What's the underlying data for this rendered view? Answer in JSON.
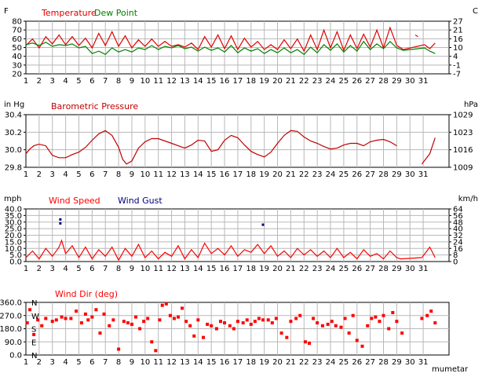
{
  "colors": {
    "temperature": "#e00000",
    "dew_point": "#008000",
    "pressure": "#c00000",
    "wind_speed": "#ff0000",
    "wind_gust": "#000080",
    "wind_dir": "#ff0000",
    "grid": "#b8b8b8"
  },
  "watermark": "mumetar",
  "chart_data": [
    {
      "type": "line",
      "title": "Temperature",
      "title2": "Dew Point",
      "left_unit": "F",
      "right_unit": "C",
      "ylim": [
        20,
        85
      ],
      "left_ticks": [
        "80",
        "70",
        "60",
        "50",
        "40",
        "30",
        "20"
      ],
      "right_ticks": [
        "27",
        "21",
        "16",
        "10",
        "4",
        "-1",
        "-7"
      ],
      "x_ticks": [
        "1",
        "2",
        "3",
        "4",
        "5",
        "6",
        "7",
        "8",
        "9",
        "10",
        "11",
        "12",
        "13",
        "14",
        "15",
        "16",
        "17",
        "18",
        "19",
        "20",
        "21",
        "22",
        "23",
        "24",
        "25",
        "26",
        "27",
        "28",
        "29",
        "30",
        "31"
      ],
      "series": [
        {
          "name": "Temperature",
          "x": [
            1,
            1.5,
            2,
            2.5,
            3,
            3.5,
            4,
            4.5,
            5,
            5.5,
            6,
            6.5,
            7,
            7.5,
            8,
            8.5,
            9,
            9.5,
            10,
            10.5,
            11,
            11.5,
            12,
            12.5,
            13,
            13.5,
            14,
            14.5,
            15,
            15.5,
            16,
            16.5,
            17,
            17.5,
            18,
            18.5,
            19,
            19.5,
            20,
            20.5,
            21,
            21.5,
            22,
            22.5,
            23,
            23.5,
            24,
            24.5,
            25,
            25.5,
            26,
            26.5,
            27,
            27.5,
            28,
            28.5,
            29,
            29.5,
            31.1,
            31.5,
            31.9
          ],
          "values": [
            55,
            63,
            52,
            66,
            57,
            68,
            56,
            66,
            55,
            64,
            52,
            70,
            55,
            72,
            54,
            67,
            52,
            62,
            54,
            63,
            54,
            60,
            54,
            56,
            53,
            58,
            50,
            66,
            53,
            68,
            51,
            67,
            50,
            64,
            53,
            60,
            50,
            56,
            50,
            62,
            51,
            63,
            48,
            68,
            50,
            74,
            52,
            72,
            49,
            68,
            51,
            69,
            53,
            74,
            52,
            77,
            55,
            50,
            56,
            51,
            58
          ]
        },
        {
          "name": "Dew Point",
          "x": [
            1,
            1.5,
            2,
            2.5,
            3,
            3.5,
            4,
            4.5,
            5,
            5.5,
            6,
            6.5,
            7,
            7.5,
            8,
            8.5,
            9,
            9.5,
            10,
            10.5,
            11,
            11.5,
            12,
            12.5,
            13,
            13.5,
            14,
            14.5,
            15,
            15.5,
            16,
            16.5,
            17,
            17.5,
            18,
            18.5,
            19,
            19.5,
            20,
            20.5,
            21,
            21.5,
            22,
            22.5,
            23,
            23.5,
            24,
            24.5,
            25,
            25.5,
            26,
            26.5,
            27,
            27.5,
            28,
            28.5,
            29,
            29.5,
            31.1,
            31.5,
            31.9
          ],
          "values": [
            56,
            58,
            55,
            59,
            54,
            56,
            55,
            57,
            52,
            54,
            45,
            48,
            44,
            52,
            47,
            50,
            47,
            52,
            50,
            55,
            50,
            54,
            52,
            55,
            51,
            53,
            48,
            53,
            49,
            52,
            47,
            55,
            46,
            52,
            48,
            51,
            45,
            50,
            46,
            52,
            46,
            50,
            44,
            53,
            46,
            56,
            49,
            57,
            47,
            55,
            48,
            60,
            50,
            57,
            51,
            60,
            52,
            49,
            52,
            48,
            45
          ]
        },
        {
          "name": "Temperature-gap",
          "x": [
            30.4,
            30.6
          ],
          "values": [
            68,
            66
          ]
        }
      ]
    },
    {
      "type": "line",
      "title": "Barometric Pressure",
      "left_unit": "in Hg",
      "right_unit": "hPa",
      "ylim": [
        29.8,
        30.46
      ],
      "left_ticks": [
        "30.4",
        "30.2",
        "30.0",
        "29.8"
      ],
      "right_ticks": [
        "1029",
        "1023",
        "1016",
        "1009"
      ],
      "series": [
        {
          "name": "Barometric Pressure",
          "x": [
            1,
            1.3,
            1.6,
            2,
            2.5,
            3,
            3.5,
            4,
            4.5,
            5,
            5.5,
            6,
            6.5,
            7,
            7.5,
            8,
            8.3,
            8.6,
            9,
            9.5,
            10,
            10.5,
            11,
            11.5,
            12,
            12.5,
            13,
            13.5,
            14,
            14.5,
            15,
            15.5,
            16,
            16.5,
            17,
            17.5,
            18,
            18.5,
            19,
            19.5,
            20,
            20.5,
            21,
            21.5,
            22,
            22.5,
            23,
            23.5,
            24,
            24.5,
            25,
            25.5,
            26,
            26.5,
            27,
            27.5,
            28,
            28.5,
            29
          ],
          "values": [
            29.97,
            30.03,
            30.07,
            30.09,
            30.07,
            29.95,
            29.92,
            29.92,
            29.96,
            29.99,
            30.05,
            30.14,
            30.22,
            30.26,
            30.2,
            30.05,
            29.9,
            29.84,
            29.88,
            30.04,
            30.12,
            30.16,
            30.16,
            30.13,
            30.1,
            30.07,
            30.04,
            30.08,
            30.14,
            30.13,
            30.0,
            30.02,
            30.14,
            30.2,
            30.17,
            30.08,
            30.0,
            29.96,
            29.93,
            29.99,
            30.1,
            30.2,
            30.26,
            30.25,
            30.18,
            30.13,
            30.1,
            30.06,
            30.03,
            30.04,
            30.08,
            30.1,
            30.1,
            30.07,
            30.12,
            30.14,
            30.15,
            30.12,
            30.07
          ]
        },
        {
          "name": "Barometric Pressure tail",
          "x": [
            30.9,
            31.5,
            31.9
          ],
          "values": [
            29.84,
            29.97,
            30.17
          ]
        }
      ]
    },
    {
      "type": "line",
      "title": "Wind Speed",
      "title2": "Wind Gust",
      "left_unit": "mph",
      "right_unit": "km/h",
      "ylim": [
        0,
        40
      ],
      "left_ticks": [
        "40.0",
        "35.0",
        "30.0",
        "25.0",
        "20.0",
        "15.0",
        "10.0",
        "5.0",
        "0.0"
      ],
      "right_ticks": [
        "64",
        "56",
        "48",
        "40",
        "32",
        "24",
        "16",
        "8",
        "0"
      ],
      "series": [
        {
          "name": "Wind Speed",
          "x": [
            1,
            1.5,
            2,
            2.5,
            3,
            3.5,
            3.7,
            4,
            4.5,
            5,
            5.5,
            6,
            6.5,
            7,
            7.5,
            8,
            8.5,
            9,
            9.5,
            10,
            10.5,
            11,
            11.5,
            12,
            12.5,
            13,
            13.5,
            14,
            14.5,
            15,
            15.5,
            16,
            16.5,
            17,
            17.5,
            18,
            18.5,
            19,
            19.5,
            20,
            20.5,
            21,
            21.5,
            22,
            22.5,
            23,
            23.5,
            24,
            24.5,
            25,
            25.5,
            26,
            26.5,
            27,
            27.5,
            28,
            28.5,
            29,
            29.3,
            30.9,
            31.5,
            31.9
          ],
          "values": [
            3,
            8,
            2,
            10,
            4,
            11,
            16,
            6,
            12,
            3,
            11,
            2,
            9,
            4,
            11,
            1,
            10,
            4,
            13,
            3,
            8,
            2,
            7,
            4,
            12,
            2,
            9,
            3,
            14,
            6,
            10,
            5,
            12,
            4,
            9,
            7,
            13,
            6,
            12,
            4,
            8,
            3,
            10,
            5,
            9,
            4,
            8,
            3,
            10,
            3,
            7,
            2,
            9,
            4,
            6,
            2,
            8,
            3,
            2,
            3,
            11,
            3
          ]
        }
      ],
      "gust_points": [
        {
          "x": 3.6,
          "y": 32
        },
        {
          "x": 3.6,
          "y": 29
        },
        {
          "x": 18.9,
          "y": 28
        }
      ]
    },
    {
      "type": "scatter",
      "title": "Wind Dir (deg)",
      "ylim": [
        0,
        360
      ],
      "left_ticks": [
        "360.0",
        "270.0",
        "180.0",
        "90.0",
        "0.0"
      ],
      "compass": [
        "N",
        "W",
        "S",
        "E",
        "N"
      ],
      "series": [
        {
          "name": "Wind Dir",
          "x": [
            1.1,
            1.3,
            1.6,
            1.9,
            2.2,
            2.5,
            3.0,
            3.3,
            3.7,
            4.0,
            4.4,
            4.8,
            5.2,
            5.5,
            5.7,
            6.0,
            6.3,
            6.6,
            6.9,
            7.3,
            7.6,
            8.0,
            8.4,
            8.7,
            9.0,
            9.3,
            9.6,
            9.9,
            10.2,
            10.5,
            10.8,
            11.1,
            11.3,
            11.6,
            11.9,
            12.2,
            12.5,
            12.8,
            13.1,
            13.4,
            13.7,
            14.0,
            14.4,
            14.7,
            15.0,
            15.4,
            15.7,
            16.0,
            16.4,
            16.7,
            17.0,
            17.4,
            17.7,
            18.0,
            18.3,
            18.6,
            18.9,
            19.3,
            19.6,
            19.9,
            20.3,
            20.7,
            21.0,
            21.4,
            21.7,
            22.1,
            22.4,
            22.7,
            23.0,
            23.4,
            23.8,
            24.1,
            24.4,
            24.8,
            25.1,
            25.4,
            25.7,
            26.0,
            26.4,
            26.8,
            27.1,
            27.4,
            27.7,
            28.0,
            28.4,
            28.7,
            29.0,
            29.4,
            30.9,
            31.3,
            31.6,
            31.9
          ],
          "values": [
            220,
            310,
            140,
            240,
            200,
            250,
            230,
            240,
            260,
            250,
            250,
            300,
            220,
            280,
            240,
            260,
            310,
            150,
            280,
            200,
            240,
            40,
            230,
            220,
            210,
            260,
            180,
            230,
            250,
            90,
            30,
            240,
            340,
            350,
            270,
            250,
            260,
            320,
            230,
            200,
            130,
            240,
            120,
            210,
            200,
            180,
            230,
            220,
            200,
            180,
            230,
            220,
            240,
            210,
            230,
            250,
            240,
            240,
            220,
            250,
            150,
            120,
            230,
            250,
            270,
            90,
            80,
            250,
            220,
            200,
            210,
            230,
            200,
            190,
            250,
            150,
            270,
            100,
            60,
            200,
            250,
            260,
            230,
            270,
            180,
            290,
            230,
            150,
            250,
            270,
            300,
            220
          ]
        }
      ]
    }
  ]
}
